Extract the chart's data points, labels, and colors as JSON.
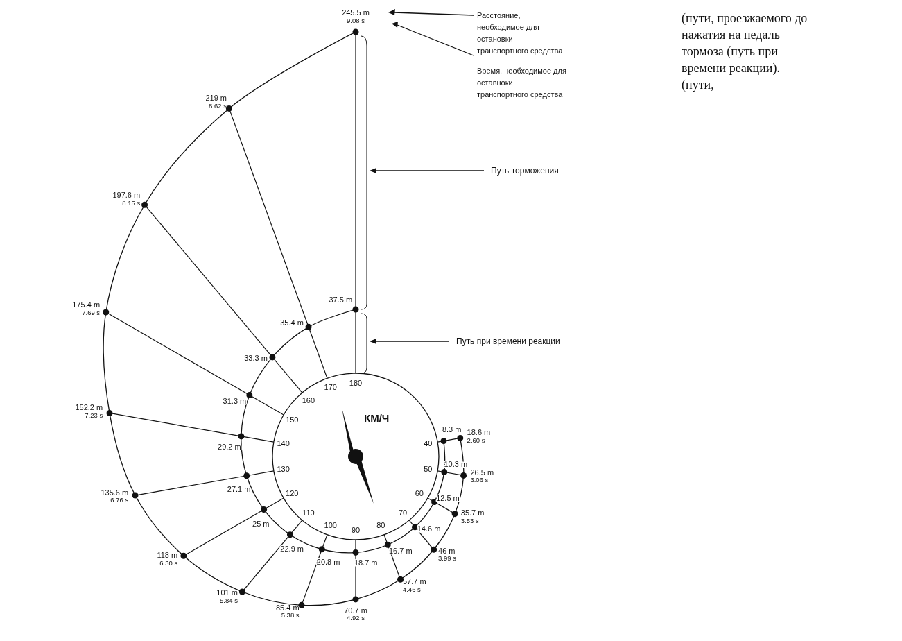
{
  "chart_data": {
    "type": "other",
    "xlabel": "КМ/Ч",
    "categories": [
      "40",
      "50",
      "60",
      "70",
      "80",
      "90",
      "100",
      "110",
      "120",
      "130",
      "140",
      "150",
      "160",
      "170",
      "180"
    ],
    "series": [
      {
        "color": "#111111",
        "values": [
          8.3,
          10.3,
          12.5,
          14.6,
          16.7,
          18.7,
          20.8,
          22.9,
          25,
          27.1,
          29.2,
          31.3,
          33.3,
          35.4,
          37.5
        ],
        "value_labels": [
          "8.3 m",
          "10.3 m",
          "12.5 m",
          "14.6 m",
          "16.7 m",
          "18.7 m",
          "20.8 m",
          "22.9 m",
          "25 m",
          "27.1 m",
          "29.2 m",
          "31.3 m",
          "33.3 m",
          "35.4 m",
          "37.5 m"
        ]
      },
      {
        "color": "#111111",
        "values": [
          18.6,
          26.5,
          35.7,
          46,
          57.7,
          70.7,
          85.4,
          101,
          118,
          135.6,
          152.2,
          175.4,
          197.6,
          219,
          245.5
        ],
        "value_labels": [
          "18.6 m",
          "26.5 m",
          "35.7 m",
          "46 m",
          "57.7 m",
          "70.7 m",
          "85.4 m",
          "101 m",
          "118 m",
          "135.6 m",
          "152.2 m",
          "175.4 m",
          "197.6 m",
          "219 m",
          "245.5 m"
        ]
      },
      {
        "color": "#111111",
        "values": [
          2.6,
          3.06,
          3.53,
          3.99,
          4.46,
          4.92,
          5.38,
          5.84,
          6.3,
          6.76,
          7.23,
          7.69,
          8.15,
          8.62,
          9.08
        ],
        "value_labels": [
          "2.60 s",
          "3.06 s",
          "3.53 s",
          "3.99 s",
          "4.46 s",
          "4.92 s",
          "5.38 s",
          "5.84 s",
          "6.30 s",
          "6.76 s",
          "7.23 s",
          "7.69 s",
          "8.15 s",
          "8.62 s",
          "9.08 s"
        ]
      }
    ],
    "annotations": [
      "Расстояние, необходимое для остановки транспортного средства",
      "Время, необходимое для оставноки транспортного средства",
      "Путь торможения",
      "Путь при времени реакции",
      "(пути, проезжаемого до нажатия на педаль тормоза (путь при времени реакции).",
      "(пути,"
    ]
  }
}
